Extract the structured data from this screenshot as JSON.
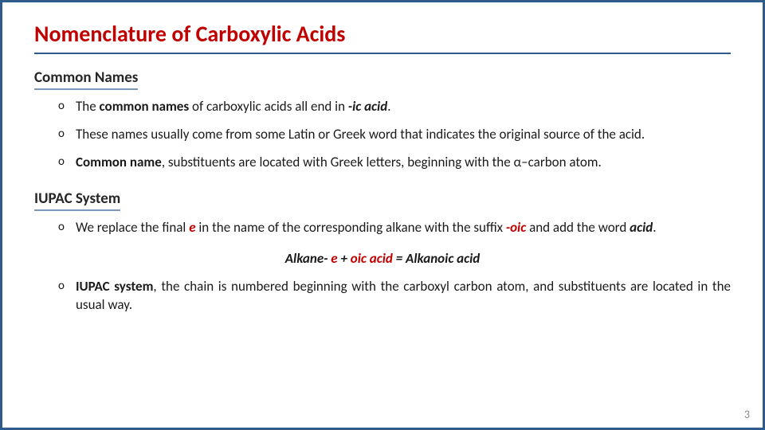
{
  "colors": {
    "border": "#2e5b8a",
    "title": "#c00000",
    "heading_underline": "#7a99bd",
    "text": "#1a1a1a",
    "page_num": "#888888",
    "highlight": "#c00000",
    "background": "#ffffff"
  },
  "typography": {
    "title_fontsize": 28,
    "heading_fontsize": 19,
    "body_fontsize": 17,
    "font_family": "Segoe UI"
  },
  "title": "Nomenclature of Carboxylic Acids",
  "sections": {
    "common": {
      "heading": "Common Names",
      "bullets": {
        "b1": {
          "t1": "The ",
          "t2": "common names",
          "t3": " of carboxylic acids all end in ",
          "t4": "-ic acid",
          "t5": "."
        },
        "b2": "These names usually come from some Latin or Greek word that indicates the original source of the acid.",
        "b3": {
          "t1": "Common name",
          "t2": ", substituents are located with Greek letters, beginning with the α–carbon atom."
        }
      }
    },
    "iupac": {
      "heading": "IUPAC System",
      "bullets": {
        "b1": {
          "t1": "We replace the final ",
          "t2": "e",
          "t3": " in the name of the corresponding alkane with the suffix ",
          "t4": "-oic",
          "t5": " and add the word ",
          "t6": "acid",
          "t7": "."
        },
        "formula": {
          "t1": "Alkane- ",
          "t2": "e",
          "t3": " + ",
          "t4": "oic acid",
          "t5": " = Alkanoic acid"
        },
        "b2": {
          "t1": "IUPAC system",
          "t2": ", the chain is numbered beginning with the carboxyl carbon atom, and substituents are located in the usual way."
        }
      }
    }
  },
  "page_number": "3"
}
